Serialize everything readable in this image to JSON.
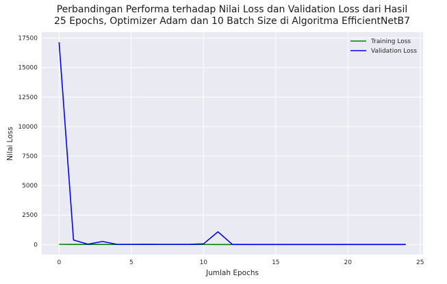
{
  "chart_data": {
    "type": "line",
    "title_lines": [
      "Perbandingan Performa terhadap Nilai Loss dan Validation Loss dari Hasil",
      "25 Epochs, Optimizer Adam dan 10 Batch Size di Algoritma EfficientNetB7"
    ],
    "xlabel": "Jumlah Epochs",
    "ylabel": "Nilai Loss",
    "xlim": [
      -1.2,
      25.2
    ],
    "ylim": [
      -850,
      18000
    ],
    "xticks": [
      0,
      5,
      10,
      15,
      20,
      25
    ],
    "yticks": [
      0,
      2500,
      5000,
      7500,
      10000,
      12500,
      15000,
      17500
    ],
    "grid": true,
    "legend_position": "top-right",
    "x": [
      0,
      1,
      2,
      3,
      4,
      5,
      6,
      7,
      8,
      9,
      10,
      11,
      12,
      13,
      14,
      15,
      16,
      17,
      18,
      19,
      20,
      21,
      22,
      23,
      24
    ],
    "series": [
      {
        "name": "Training Loss",
        "color": "#008000",
        "values": [
          20,
          10,
          8,
          7,
          6,
          6,
          5,
          5,
          5,
          5,
          5,
          4,
          4,
          4,
          4,
          4,
          4,
          4,
          4,
          4,
          4,
          4,
          4,
          4,
          4
        ]
      },
      {
        "name": "Validation Loss",
        "color": "#0000ff",
        "values": [
          17150,
          380,
          30,
          260,
          20,
          20,
          25,
          20,
          20,
          15,
          60,
          1080,
          10,
          10,
          10,
          10,
          10,
          10,
          10,
          10,
          10,
          10,
          10,
          10,
          10
        ]
      }
    ]
  },
  "style": {
    "plot_bg": "#eaeaf2",
    "grid_color": "#ffffff"
  }
}
